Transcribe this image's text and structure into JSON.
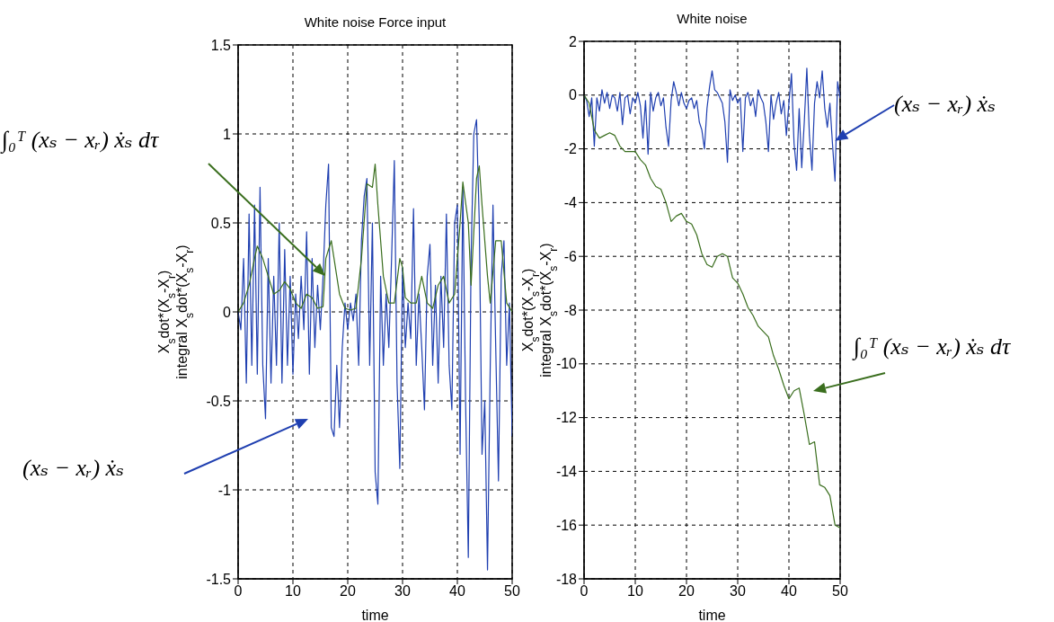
{
  "chart_data": [
    {
      "type": "line",
      "title": "White noise Force input",
      "xlabel": "time",
      "ylabel": "X$_{s}$dot*(X$_{s}$-X$_{r}$)\nintegral X$_{s}$dot*(X$_{s}$-X$_{r}$)",
      "xlim": [
        0,
        50
      ],
      "xticks": [
        0,
        10,
        20,
        30,
        40,
        50
      ],
      "ylim": [
        -1.5,
        1.5
      ],
      "yticks": [
        -1.5,
        -1,
        -0.5,
        0,
        0.5,
        1,
        1.5
      ],
      "grid": true,
      "annotations": [
        "∫₀ᵀ (xₛ − xᵣ) ẋₛ dτ",
        "(xₛ − xᵣ) ẋₛ"
      ],
      "series": [
        {
          "color": "#1f3fb0",
          "x": [
            0,
            0.5,
            1,
            1.5,
            2,
            2.5,
            3,
            3.5,
            4,
            4.5,
            5,
            5.5,
            6,
            6.5,
            7,
            7.5,
            8,
            8.5,
            9,
            9.5,
            10,
            10.5,
            11,
            11.5,
            12,
            12.5,
            13,
            13.5,
            14,
            14.5,
            15,
            15.5,
            16,
            16.5,
            17,
            17.5,
            18,
            18.5,
            19,
            19.5,
            20,
            20.5,
            21,
            21.5,
            22,
            22.5,
            23,
            23.5,
            24,
            24.5,
            25,
            25.5,
            26,
            26.5,
            27,
            27.5,
            28,
            28.5,
            29,
            29.5,
            30,
            30.5,
            31,
            31.5,
            32,
            32.5,
            33,
            33.5,
            34,
            34.5,
            35,
            35.5,
            36,
            36.5,
            37,
            37.5,
            38,
            38.5,
            39,
            39.5,
            40,
            40.5,
            41,
            41.5,
            42,
            42.5,
            43,
            43.5,
            44,
            44.5,
            45,
            45.5,
            46,
            46.5,
            47,
            47.5,
            48,
            48.5,
            49,
            49.5,
            50
          ],
          "values": [
            0,
            -0.1,
            0.3,
            -0.4,
            0.55,
            -0.3,
            0.6,
            -0.35,
            0.7,
            -0.3,
            -0.6,
            0.3,
            -0.4,
            0.2,
            -0.3,
            0.5,
            -0.4,
            0.35,
            -0.3,
            0.2,
            -0.35,
            0.1,
            -0.15,
            0.2,
            -0.1,
            0.45,
            -0.35,
            0.3,
            -0.2,
            0.15,
            -0.1,
            0.2,
            0.6,
            0.83,
            -0.65,
            -0.7,
            -0.3,
            -0.65,
            -0.2,
            0.05,
            -0.1,
            0.05,
            -0.05,
            0.1,
            -0.3,
            0.4,
            0.65,
            0.75,
            -0.3,
            0.5,
            -0.9,
            -1.08,
            0.2,
            -0.3,
            0.1,
            -0.2,
            0.3,
            0.85,
            -0.4,
            -0.88,
            0.25,
            -0.2,
            0.05,
            -0.15,
            0.58,
            -0.3,
            0.1,
            -0.2,
            -0.55,
            0.2,
            0.38,
            -0.3,
            0.15,
            -0.4,
            0.2,
            -0.2,
            0.55,
            -0.3,
            -0.55,
            0.5,
            0.6,
            -0.8,
            0.7,
            -0.5,
            -1.38,
            0.3,
            1.0,
            1.08,
            0.5,
            -0.8,
            -0.5,
            -1.45,
            -0.3,
            0.6,
            -0.2,
            -0.95,
            0.2,
            0.4,
            -0.3,
            0.05,
            -0.7
          ]
        },
        {
          "color": "#3a6e1e",
          "x": [
            0,
            1,
            2,
            3,
            3.5,
            4.5,
            5.5,
            6.5,
            7.5,
            8.5,
            9.5,
            10.5,
            11.5,
            12.5,
            13.5,
            14.5,
            15.5,
            16,
            17,
            17.5,
            18.5,
            19.5,
            20.5,
            21.5,
            22.5,
            23.5,
            24.5,
            25,
            25.5,
            26.5,
            27.5,
            28.5,
            29.5,
            30,
            30.5,
            31.5,
            32.5,
            33.5,
            34.5,
            35.5,
            36.5,
            37.5,
            38.5,
            39.5,
            40.5,
            41,
            42,
            42.5,
            43.5,
            44,
            44.5,
            45.5,
            46,
            47,
            48,
            49,
            50
          ],
          "values": [
            0,
            0.05,
            0.15,
            0.3,
            0.37,
            0.3,
            0.2,
            0.1,
            0.12,
            0.17,
            0.13,
            0.05,
            0.02,
            0.1,
            0.08,
            0.02,
            0.03,
            0.3,
            0.4,
            0.3,
            0.1,
            0.02,
            0.01,
            0.02,
            0.3,
            0.72,
            0.7,
            0.83,
            0.6,
            0.2,
            0.05,
            0.05,
            0.3,
            0.25,
            0.08,
            0.05,
            0.05,
            0.2,
            0.05,
            0.02,
            0.15,
            0.2,
            0.05,
            0.1,
            0.5,
            0.73,
            0.5,
            0.15,
            0.75,
            0.82,
            0.6,
            0.2,
            0.05,
            0.4,
            0.4,
            0.05,
            0
          ]
        }
      ]
    },
    {
      "type": "line",
      "title": "White noise",
      "xlabel": "time",
      "ylabel": "X$_{s}$dot*(X$_{s}$-X$_{r}$)\nintegral X$_{s}$dot*(X$_{s}$-X$_{r}$)",
      "xlim": [
        0,
        50
      ],
      "xticks": [
        0,
        10,
        20,
        30,
        40,
        50
      ],
      "ylim": [
        -18,
        2
      ],
      "yticks": [
        -18,
        -16,
        -14,
        -12,
        -10,
        -8,
        -6,
        -4,
        -2,
        0,
        2
      ],
      "grid": true,
      "annotations": [
        {
          "text": "(xₛ − xᵣ) ẋₛ",
          "x": 49,
          "y": -1.7
        },
        "∫₀ᵀ (xₛ − xᵣ) ẋₛ dτ"
      ],
      "series": [
        {
          "color": "#1f3fb0",
          "x": [
            0,
            0.5,
            1,
            1.5,
            2,
            2.5,
            3,
            3.5,
            4,
            4.5,
            5,
            5.5,
            6,
            6.5,
            7,
            7.5,
            8,
            8.5,
            9,
            9.5,
            10,
            10.5,
            11,
            11.5,
            12,
            12.5,
            13,
            13.5,
            14,
            14.5,
            15,
            15.5,
            16,
            16.5,
            17,
            17.5,
            18,
            18.5,
            19,
            19.5,
            20,
            20.5,
            21,
            21.5,
            22,
            22.5,
            23,
            23.5,
            24,
            24.5,
            25,
            25.5,
            26,
            26.5,
            27,
            27.5,
            28,
            28.5,
            29,
            29.5,
            30,
            30.5,
            31,
            31.5,
            32,
            32.5,
            33,
            33.5,
            34,
            34.5,
            35,
            35.5,
            36,
            36.5,
            37,
            37.5,
            38,
            38.5,
            39,
            39.5,
            40,
            40.5,
            41,
            41.5,
            42,
            42.5,
            43,
            43.5,
            44,
            44.5,
            45,
            45.5,
            46,
            46.5,
            47,
            47.5,
            48,
            48.5,
            49,
            49.5,
            50
          ],
          "values": [
            0,
            -0.2,
            -0.8,
            -0.1,
            -1.9,
            -0.1,
            -0.6,
            0.2,
            -0.3,
            0.1,
            -0.5,
            0,
            -0.1,
            -0.6,
            0.1,
            -1.1,
            -0.1,
            0,
            -0.7,
            -0.1,
            -0.3,
            0.1,
            -0.4,
            -1.6,
            -0.2,
            -2.2,
            0.1,
            -0.6,
            -0.1,
            0.1,
            -0.4,
            -0.1,
            -1.2,
            -1.9,
            -0.2,
            0.5,
            0.1,
            -0.4,
            0.1,
            -0.3,
            -0.5,
            -0.2,
            -0.1,
            -0.5,
            -0.2,
            -1.0,
            -1.3,
            -2.0,
            -0.5,
            0.3,
            0.9,
            0.2,
            0.1,
            -0.1,
            -0.3,
            -1.0,
            -2.5,
            0.2,
            -0.2,
            0,
            -0.3,
            -0.1,
            -2.1,
            -0.1,
            0.1,
            -0.4,
            -0.1,
            -0.8,
            0.2,
            -0.1,
            -0.3,
            -1.0,
            -2.1,
            0,
            -0.9,
            -0.3,
            0.1,
            -0.7,
            -0.2,
            -1.5,
            -0.3,
            0.8,
            -1.8,
            -2.8,
            -0.5,
            -2.7,
            -1.0,
            1.0,
            -1.5,
            -2.8,
            -0.3,
            0.5,
            -0.1,
            0.9,
            -0.5,
            -1.2,
            -0.3,
            -1.8,
            -3.2,
            0.5,
            -0.1
          ]
        },
        {
          "color": "#3a6e1e",
          "x": [
            0,
            1,
            2,
            3,
            4,
            5,
            6,
            7,
            8,
            9,
            10,
            11,
            12,
            13,
            14,
            15,
            16,
            17,
            18,
            19,
            20,
            21,
            22,
            23,
            24,
            25,
            26,
            27,
            28,
            29,
            30,
            31,
            32,
            33,
            34,
            35,
            36,
            37,
            38,
            39,
            40,
            41,
            42,
            43,
            44,
            45,
            46,
            47,
            48,
            49,
            50
          ],
          "values": [
            0,
            -0.3,
            -1.3,
            -1.6,
            -1.5,
            -1.4,
            -1.5,
            -1.9,
            -2.1,
            -2.1,
            -2.1,
            -2.4,
            -2.6,
            -3.1,
            -3.4,
            -3.5,
            -4.0,
            -4.7,
            -4.5,
            -4.4,
            -4.7,
            -4.8,
            -5.2,
            -5.9,
            -6.3,
            -6.4,
            -6.0,
            -5.9,
            -6.0,
            -6.8,
            -7.0,
            -7.4,
            -7.9,
            -8.2,
            -8.6,
            -8.8,
            -9.0,
            -9.7,
            -10.2,
            -10.8,
            -11.3,
            -11.0,
            -10.9,
            -11.9,
            -13.0,
            -12.9,
            -14.5,
            -14.6,
            -14.9,
            -16.0,
            -16.1
          ]
        }
      ]
    }
  ]
}
